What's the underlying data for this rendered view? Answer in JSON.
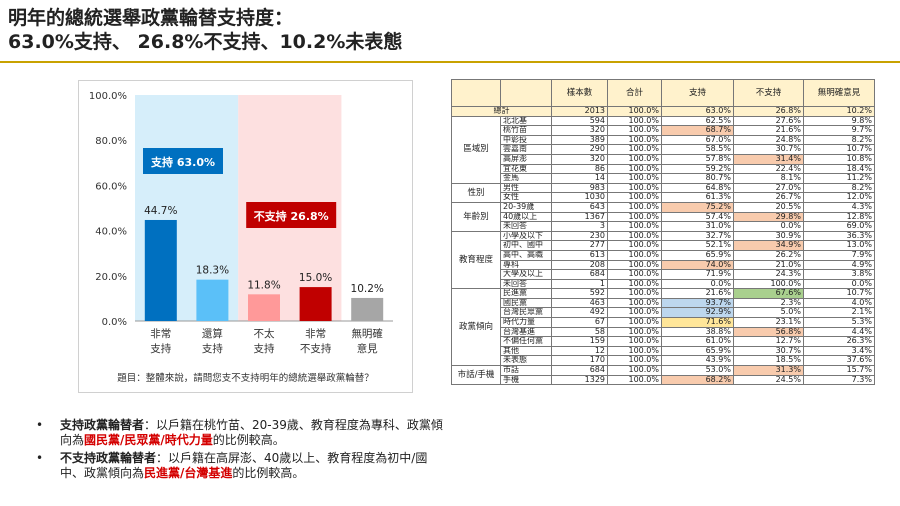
{
  "title": {
    "line1": "明年的總統選舉政黨輪替支持度：",
    "line2": "63.0%支持、 26.8%不支持、10.2%未表態"
  },
  "chart_data": {
    "type": "bar",
    "categories": [
      "非常\n支持",
      "還算\n支持",
      "不太\n支持",
      "非常\n不支持",
      "無明確\n意見"
    ],
    "values": [
      44.7,
      18.3,
      11.8,
      15.0,
      10.2
    ],
    "value_labels": [
      "44.7%",
      "18.3%",
      "11.8%",
      "15.0%",
      "10.2%"
    ],
    "y_ticks": [
      "100.0%",
      "80.0%",
      "60.0%",
      "40.0%",
      "20.0%",
      "0.0%"
    ],
    "ylim": [
      0,
      100
    ],
    "bar_colors": [
      "#0070c0",
      "#5bc0f8",
      "#ff9999",
      "#c00000",
      "#a6a6a6"
    ],
    "band_colors": {
      "support": "#d6eefa",
      "oppose": "#fde0e0"
    },
    "support_badge": "支持 63.0%",
    "oppose_badge": "不支持 26.8%",
    "note": "題目：整體來說，請問您支不支持明年的總統選舉政黨輪替？"
  },
  "notes": [
    {
      "bold": "支持政黨輪替者",
      "pre": "：以戶籍在桃竹苗、20-39歲、教育程度為專科、政黨傾向為",
      "red": "國民黨/民眾黨/時代力量",
      "post": "的比例較高。"
    },
    {
      "bold": "不支持政黨輪替者",
      "pre": "：以戶籍在高屏澎、40歲以上、教育程度為初中/國中、政黨傾向為",
      "red": "民進黨/台灣基進",
      "post": "的比例較高。"
    }
  ],
  "table": {
    "headers": [
      "",
      "",
      "樣本數",
      "合計",
      "支持",
      "不支持",
      "無明確意見"
    ],
    "total": {
      "label": "總計",
      "n": "2013",
      "sum": "100.0%",
      "s": "63.0%",
      "o": "26.8%",
      "u": "10.2%"
    },
    "groups": [
      {
        "name": "區域別",
        "rows": [
          [
            "北北基",
            "594",
            "100.0%",
            "62.5%",
            "27.6%",
            "9.8%",
            "",
            ""
          ],
          [
            "桃竹苗",
            "320",
            "100.0%",
            "68.7%",
            "21.6%",
            "9.7%",
            "red",
            ""
          ],
          [
            "中彰投",
            "389",
            "100.0%",
            "67.0%",
            "24.8%",
            "8.2%",
            "",
            ""
          ],
          [
            "雲嘉南",
            "290",
            "100.0%",
            "58.5%",
            "30.7%",
            "10.7%",
            "",
            ""
          ],
          [
            "高屏澎",
            "320",
            "100.0%",
            "57.8%",
            "31.4%",
            "10.8%",
            "",
            "red"
          ],
          [
            "宜花東",
            "86",
            "100.0%",
            "59.2%",
            "22.4%",
            "18.4%",
            "",
            ""
          ],
          [
            "金馬",
            "14",
            "100.0%",
            "80.7%",
            "8.1%",
            "11.2%",
            "",
            ""
          ]
        ]
      },
      {
        "name": "性別",
        "rows": [
          [
            "男性",
            "983",
            "100.0%",
            "64.8%",
            "27.0%",
            "8.2%",
            "",
            ""
          ],
          [
            "女性",
            "1030",
            "100.0%",
            "61.3%",
            "26.7%",
            "12.0%",
            "",
            ""
          ]
        ]
      },
      {
        "name": "年齡別",
        "rows": [
          [
            "20-39歲",
            "643",
            "100.0%",
            "75.2%",
            "20.5%",
            "4.3%",
            "red",
            ""
          ],
          [
            "40歲以上",
            "1367",
            "100.0%",
            "57.4%",
            "29.8%",
            "12.8%",
            "",
            "red"
          ],
          [
            "未回答",
            "3",
            "100.0%",
            "31.0%",
            "0.0%",
            "69.0%",
            "",
            ""
          ]
        ]
      },
      {
        "name": "教育程度",
        "rows": [
          [
            "小學及以下",
            "230",
            "100.0%",
            "32.7%",
            "30.9%",
            "36.3%",
            "",
            ""
          ],
          [
            "初中、國中",
            "277",
            "100.0%",
            "52.1%",
            "34.9%",
            "13.0%",
            "",
            "red"
          ],
          [
            "高中、高職",
            "613",
            "100.0%",
            "65.9%",
            "26.2%",
            "7.9%",
            "",
            ""
          ],
          [
            "專科",
            "208",
            "100.0%",
            "74.0%",
            "21.0%",
            "4.9%",
            "red",
            ""
          ],
          [
            "大學及以上",
            "684",
            "100.0%",
            "71.9%",
            "24.3%",
            "3.8%",
            "",
            ""
          ],
          [
            "未回答",
            "1",
            "100.0%",
            "0.0%",
            "100.0%",
            "0.0%",
            "",
            ""
          ]
        ]
      },
      {
        "name": "政黨傾向",
        "rows": [
          [
            "民進黨",
            "592",
            "100.0%",
            "21.6%",
            "67.6%",
            "10.7%",
            "",
            "green"
          ],
          [
            "國民黨",
            "463",
            "100.0%",
            "93.7%",
            "2.3%",
            "4.0%",
            "blue",
            ""
          ],
          [
            "台灣民眾黨",
            "492",
            "100.0%",
            "92.9%",
            "5.0%",
            "2.1%",
            "blue",
            ""
          ],
          [
            "時代力量",
            "67",
            "100.0%",
            "71.6%",
            "23.1%",
            "5.3%",
            "yellow",
            ""
          ],
          [
            "台灣基進",
            "58",
            "100.0%",
            "38.8%",
            "56.8%",
            "4.4%",
            "",
            "red"
          ],
          [
            "不偏任何黨",
            "159",
            "100.0%",
            "61.0%",
            "12.7%",
            "26.3%",
            "",
            ""
          ],
          [
            "其他",
            "12",
            "100.0%",
            "65.9%",
            "30.7%",
            "3.4%",
            "",
            ""
          ],
          [
            "未表態",
            "170",
            "100.0%",
            "43.9%",
            "18.5%",
            "37.6%",
            "",
            ""
          ]
        ]
      },
      {
        "name": "市話/手機",
        "rows": [
          [
            "市話",
            "684",
            "100.0%",
            "53.0%",
            "31.3%",
            "15.7%",
            "",
            "red"
          ],
          [
            "手機",
            "1329",
            "100.0%",
            "68.2%",
            "24.5%",
            "7.3%",
            "red",
            ""
          ]
        ]
      }
    ]
  }
}
